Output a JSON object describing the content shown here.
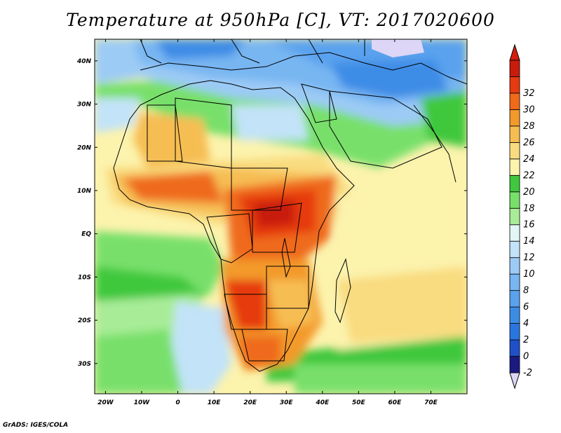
{
  "title": "Temperature at 950hPa [C], VT: 2017020600",
  "credit": "GrADS: IGES/COLA",
  "map": {
    "lon_range": [
      -23,
      80
    ],
    "lat_range": [
      -37,
      45
    ],
    "lon_ticks": [
      {
        "value": -20,
        "label": "20W"
      },
      {
        "value": -10,
        "label": "10W"
      },
      {
        "value": 0,
        "label": "0"
      },
      {
        "value": 10,
        "label": "10E"
      },
      {
        "value": 20,
        "label": "20E"
      },
      {
        "value": 30,
        "label": "30E"
      },
      {
        "value": 40,
        "label": "40E"
      },
      {
        "value": 50,
        "label": "50E"
      },
      {
        "value": 60,
        "label": "60E"
      },
      {
        "value": 70,
        "label": "70E"
      }
    ],
    "lat_ticks": [
      {
        "value": 40,
        "label": "40N"
      },
      {
        "value": 30,
        "label": "30N"
      },
      {
        "value": 20,
        "label": "20N"
      },
      {
        "value": 10,
        "label": "10N"
      },
      {
        "value": 0,
        "label": "EQ"
      },
      {
        "value": -10,
        "label": "10S"
      },
      {
        "value": -20,
        "label": "20S"
      },
      {
        "value": -30,
        "label": "30S"
      }
    ]
  },
  "colorbar": {
    "levels": [
      "-2",
      "0",
      "2",
      "4",
      "6",
      "8",
      "10",
      "12",
      "14",
      "16",
      "18",
      "20",
      "22",
      "24",
      "26",
      "28",
      "30",
      "32"
    ],
    "colors": [
      "#1a1a80",
      "#1f50c8",
      "#2a76e0",
      "#3c8ce6",
      "#5aa2ee",
      "#78b6f2",
      "#9ccbf5",
      "#c2e3f8",
      "#e2f6f5",
      "#a8ec98",
      "#78e06a",
      "#3fc83e",
      "#fcf3ad",
      "#f9dc80",
      "#f6bd52",
      "#f39a2c",
      "#ef6a1a",
      "#e63a10",
      "#c81c0c"
    ],
    "under_color": "#ddd6f6",
    "over_color": "#d41e0e"
  }
}
